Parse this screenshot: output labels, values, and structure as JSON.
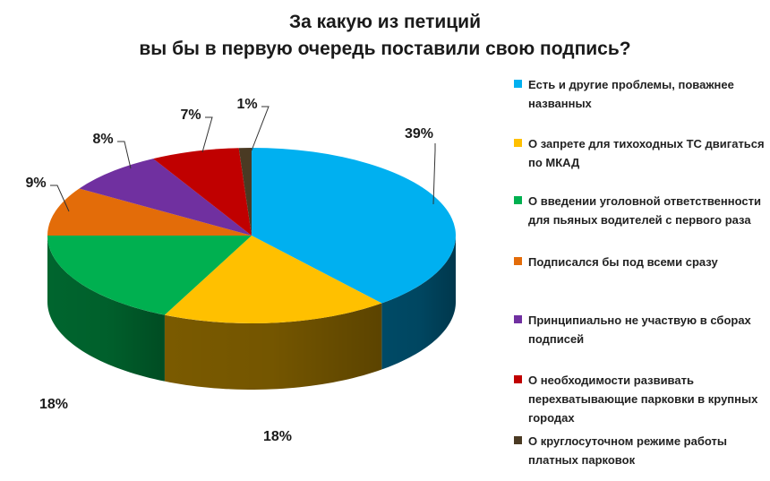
{
  "chart_data": {
    "type": "pie",
    "title_lines": [
      "За какую из петиций",
      "вы бы в первую очередь поставили свою подпись?"
    ],
    "slices": [
      {
        "label": "Есть и другие проблемы, поважнее названных",
        "value": 39,
        "display": "39%",
        "color": "#00b0f0",
        "side": "#004a66"
      },
      {
        "label": "О запрете для тихоходных ТС двигаться по МКАД",
        "value": 18,
        "display": "18%",
        "color": "#ffc000",
        "side": "#7a5a00"
      },
      {
        "label": "О введении уголовной ответственности для пьяных водителей с первого раза",
        "value": 18,
        "display": "18%",
        "color": "#00b050",
        "side": "#00652e"
      },
      {
        "label": "Подписался бы под всеми сразу",
        "value": 9,
        "display": "9%",
        "color": "#e36c09",
        "side": "#8a3f04"
      },
      {
        "label": "Принципиально не участвую в сборах подписей",
        "value": 8,
        "display": "8%",
        "color": "#7030a0",
        "side": "#3d1a58"
      },
      {
        "label": "О необходимости развивать перехватывающие парковки в крупных городах",
        "value": 7,
        "display": "7%",
        "color": "#c00000",
        "side": "#6e0000"
      },
      {
        "label": "О круглосуточном режиме работы платных парковок",
        "value": 1,
        "display": "1%",
        "color": "#4a3a23",
        "side": "#2a2014"
      }
    ],
    "legend_position": "right"
  }
}
